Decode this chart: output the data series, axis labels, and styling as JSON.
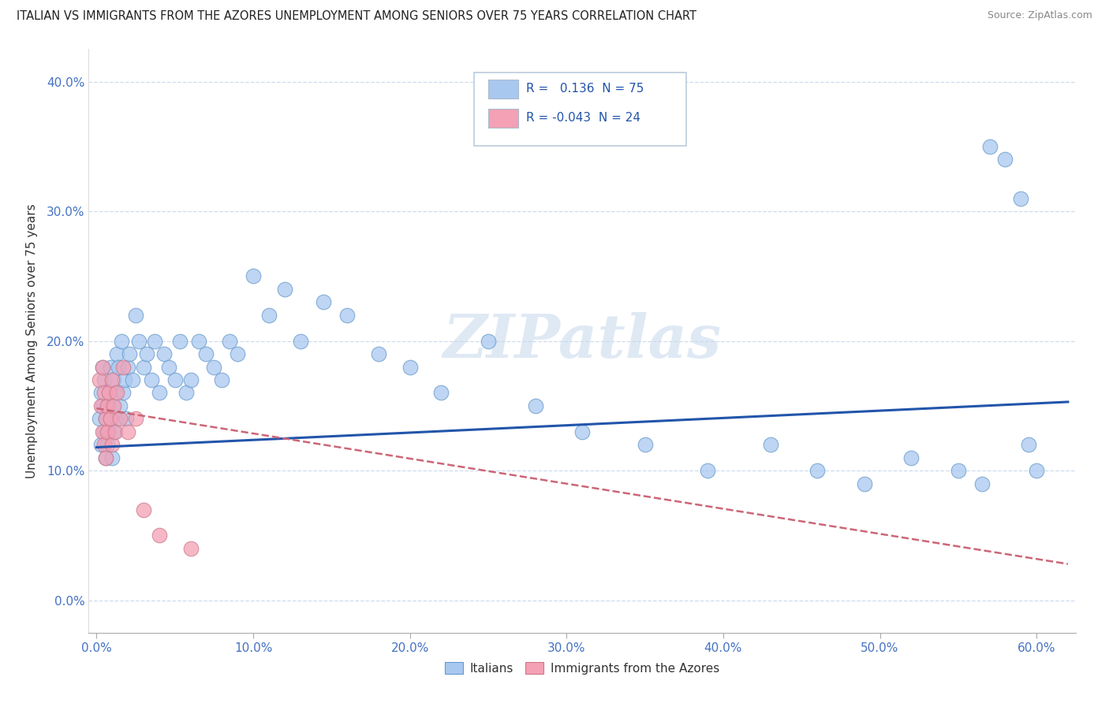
{
  "title": "ITALIAN VS IMMIGRANTS FROM THE AZORES UNEMPLOYMENT AMONG SENIORS OVER 75 YEARS CORRELATION CHART",
  "source": "Source: ZipAtlas.com",
  "xlim": [
    -0.005,
    0.625
  ],
  "ylim": [
    -0.025,
    0.425
  ],
  "watermark": "ZIPatlas",
  "watermark_font": 55,
  "italians_color": "#a8c8f0",
  "italians_edge": "#6699cc",
  "italians_trend": "#2255aa",
  "azores_color": "#f4a0b5",
  "azores_edge": "#cc7788",
  "azores_trend": "#cc6677",
  "legend_box_color": "#ccddee",
  "legend_box_edge": "#aabbcc",
  "R_italian": 0.136,
  "N_italian": 75,
  "R_azores": -0.043,
  "N_azores": 24,
  "italian_x": [
    0.002,
    0.003,
    0.003,
    0.004,
    0.004,
    0.005,
    0.005,
    0.006,
    0.006,
    0.007,
    0.007,
    0.008,
    0.008,
    0.009,
    0.009,
    0.01,
    0.01,
    0.011,
    0.011,
    0.012,
    0.013,
    0.013,
    0.014,
    0.015,
    0.016,
    0.017,
    0.018,
    0.019,
    0.02,
    0.021,
    0.023,
    0.025,
    0.027,
    0.03,
    0.032,
    0.035,
    0.037,
    0.04,
    0.043,
    0.046,
    0.05,
    0.053,
    0.057,
    0.06,
    0.065,
    0.07,
    0.075,
    0.08,
    0.085,
    0.09,
    0.1,
    0.11,
    0.12,
    0.13,
    0.145,
    0.16,
    0.18,
    0.2,
    0.22,
    0.25,
    0.28,
    0.31,
    0.35,
    0.39,
    0.43,
    0.46,
    0.49,
    0.52,
    0.55,
    0.565,
    0.57,
    0.58,
    0.59,
    0.595,
    0.6
  ],
  "italian_y": [
    0.14,
    0.16,
    0.12,
    0.15,
    0.18,
    0.13,
    0.17,
    0.14,
    0.11,
    0.15,
    0.12,
    0.16,
    0.13,
    0.14,
    0.18,
    0.15,
    0.11,
    0.17,
    0.13,
    0.16,
    0.14,
    0.19,
    0.18,
    0.15,
    0.2,
    0.16,
    0.17,
    0.14,
    0.18,
    0.19,
    0.17,
    0.22,
    0.2,
    0.18,
    0.19,
    0.17,
    0.2,
    0.16,
    0.19,
    0.18,
    0.17,
    0.2,
    0.16,
    0.17,
    0.2,
    0.19,
    0.18,
    0.17,
    0.2,
    0.19,
    0.25,
    0.22,
    0.24,
    0.2,
    0.23,
    0.22,
    0.19,
    0.18,
    0.16,
    0.2,
    0.15,
    0.13,
    0.12,
    0.1,
    0.12,
    0.1,
    0.09,
    0.11,
    0.1,
    0.09,
    0.35,
    0.34,
    0.31,
    0.12,
    0.1
  ],
  "azores_x": [
    0.002,
    0.003,
    0.004,
    0.004,
    0.005,
    0.005,
    0.006,
    0.006,
    0.007,
    0.007,
    0.008,
    0.009,
    0.01,
    0.01,
    0.011,
    0.012,
    0.013,
    0.015,
    0.017,
    0.02,
    0.025,
    0.03,
    0.04,
    0.06
  ],
  "azores_y": [
    0.17,
    0.15,
    0.18,
    0.13,
    0.16,
    0.12,
    0.14,
    0.11,
    0.15,
    0.13,
    0.16,
    0.14,
    0.12,
    0.17,
    0.15,
    0.13,
    0.16,
    0.14,
    0.18,
    0.13,
    0.14,
    0.07,
    0.05,
    0.04
  ],
  "italian_trend_x0": 0.0,
  "italian_trend_x1": 0.62,
  "italian_trend_y0": 0.118,
  "italian_trend_y1": 0.153,
  "azores_trend_x0": 0.0,
  "azores_trend_x1": 0.62,
  "azores_trend_y0": 0.148,
  "azores_trend_y1": 0.028
}
